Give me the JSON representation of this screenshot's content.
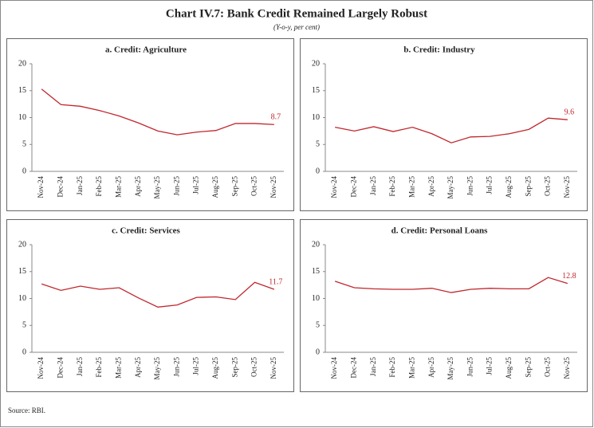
{
  "title": "Chart IV.7: Bank Credit Remained Largely Robust",
  "subtitle": "(Y-o-y, per cent)",
  "source": "Source: RBI.",
  "chart_data": [
    {
      "type": "line",
      "title": "a. Credit: Agriculture",
      "categories": [
        "Nov-24",
        "Dec-24",
        "Jan-25",
        "Feb-25",
        "Mar-25",
        "Apr-25",
        "May-25",
        "Jun-25",
        "Jul-25",
        "Aug-25",
        "Sep-25",
        "Oct-25",
        "Nov-25"
      ],
      "values": [
        15.3,
        12.4,
        12.1,
        11.3,
        10.3,
        9.0,
        7.5,
        6.8,
        7.3,
        7.6,
        8.9,
        8.9,
        8.7
      ],
      "color": "#c0272d",
      "ylim": [
        0,
        20
      ],
      "yticks": [
        0,
        5,
        10,
        15,
        20
      ]
    },
    {
      "type": "line",
      "title": "b. Credit: Industry",
      "categories": [
        "Nov-24",
        "Dec-24",
        "Jan-25",
        "Feb-25",
        "Mar-25",
        "Apr-25",
        "May-25",
        "Jun-25",
        "Jul-25",
        "Aug-25",
        "Sep-25",
        "Oct-25",
        "Nov-25"
      ],
      "values": [
        8.2,
        7.5,
        8.3,
        7.4,
        8.2,
        7.0,
        5.3,
        6.4,
        6.5,
        7.0,
        7.8,
        9.9,
        9.6
      ],
      "color": "#c0272d",
      "ylim": [
        0,
        20
      ],
      "yticks": [
        0,
        5,
        10,
        15,
        20
      ]
    },
    {
      "type": "line",
      "title": "c. Credit: Services",
      "categories": [
        "Nov-24",
        "Dec-24",
        "Jan-25",
        "Feb-25",
        "Mar-25",
        "Apr-25",
        "May-25",
        "Jun-25",
        "Jul-25",
        "Aug-25",
        "Sep-25",
        "Oct-25",
        "Nov-25"
      ],
      "values": [
        12.7,
        11.5,
        12.3,
        11.7,
        12.0,
        10.1,
        8.4,
        8.8,
        10.2,
        10.3,
        9.8,
        13.0,
        11.7
      ],
      "color": "#c0272d",
      "ylim": [
        0,
        20
      ],
      "yticks": [
        0,
        5,
        10,
        15,
        20
      ]
    },
    {
      "type": "line",
      "title": "d. Credit: Personal Loans",
      "categories": [
        "Nov-24",
        "Dec-24",
        "Jan-25",
        "Feb-25",
        "Mar-25",
        "Apr-25",
        "May-25",
        "Jun-25",
        "Jul-25",
        "Aug-25",
        "Sep-25",
        "Oct-25",
        "Nov-25"
      ],
      "values": [
        13.2,
        12.0,
        11.8,
        11.7,
        11.7,
        11.9,
        11.1,
        11.7,
        11.9,
        11.8,
        11.8,
        13.9,
        12.8
      ],
      "color": "#c0272d",
      "ylim": [
        0,
        20
      ],
      "yticks": [
        0,
        5,
        10,
        15,
        20
      ]
    }
  ]
}
